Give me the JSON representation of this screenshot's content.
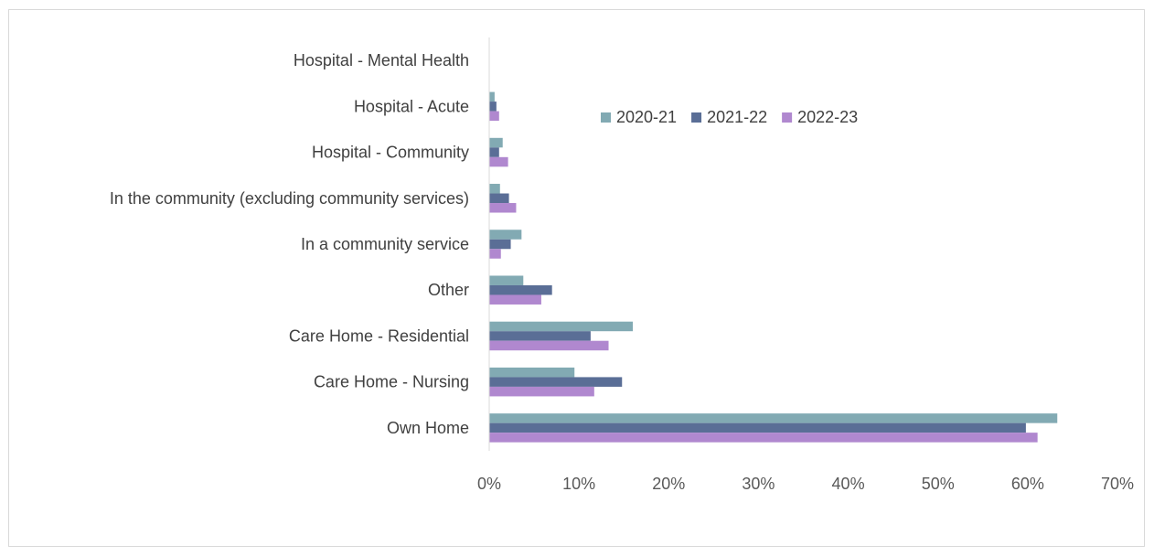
{
  "chart_data": {
    "type": "bar",
    "orientation": "horizontal",
    "categories": [
      "Hospital - Mental Health",
      "Hospital - Acute",
      "Hospital - Community",
      "In the community (excluding community services)",
      "In a community service",
      "Other",
      "Care Home - Residential",
      "Care Home - Nursing",
      "Own Home"
    ],
    "series": [
      {
        "name": "2020-21",
        "color": "#82aab3",
        "values": [
          0,
          0.6,
          1.5,
          1.2,
          3.6,
          3.8,
          16.0,
          9.5,
          63.3
        ]
      },
      {
        "name": "2021-22",
        "color": "#5a6e96",
        "values": [
          0,
          0.8,
          1.1,
          2.2,
          2.4,
          7.0,
          11.3,
          14.8,
          59.8
        ]
      },
      {
        "name": "2022-23",
        "color": "#b088cf",
        "values": [
          0,
          1.1,
          2.1,
          3.0,
          1.3,
          5.8,
          13.3,
          11.7,
          61.1
        ]
      }
    ],
    "xlim": [
      0,
      70
    ],
    "x_ticks": [
      "0%",
      "10%",
      "20%",
      "30%",
      "40%",
      "50%",
      "60%",
      "70%"
    ],
    "legend_position": "top-right",
    "grid": false
  }
}
